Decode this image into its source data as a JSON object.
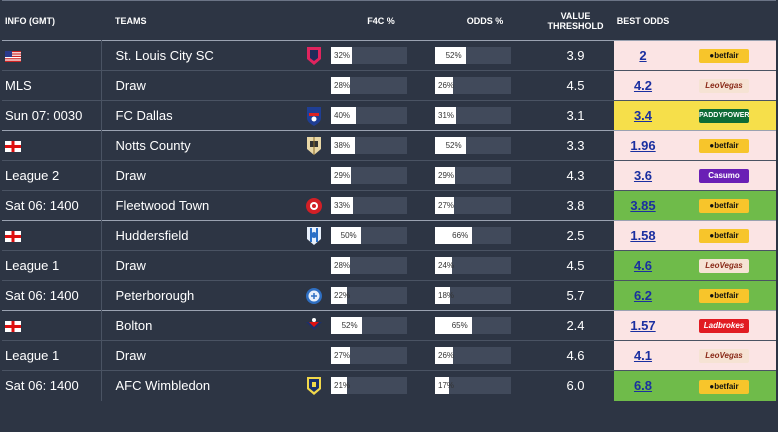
{
  "headers": {
    "info": "INFO (GMT)",
    "teams": "TEAMS",
    "f4c": "F4C %",
    "odds": "ODDS %",
    "value_threshold": "VALUE THRESHOLD",
    "best_odds": "BEST ODDS"
  },
  "colors": {
    "pink": "#fbe4e4",
    "yellow": "#f6df4a",
    "green": "#6fbb4a",
    "bg": "#2d3544"
  },
  "rows": [
    {
      "info": "",
      "flag": "usa-flag-icon",
      "team": "St. Louis City SC",
      "crest": "st-louis-city-crest-icon",
      "f4c_pct": 32,
      "f4c_text": "32%",
      "odds_pct": 52,
      "odds_text": "52%",
      "vt": "3.9",
      "best": "2",
      "bm": "Betfair",
      "bm_kind": "betfair",
      "highlight": "pink"
    },
    {
      "info": "MLS",
      "flag": "",
      "team": "Draw",
      "crest": "",
      "f4c_pct": 28,
      "f4c_text": "28%",
      "odds_pct": 26,
      "odds_text": "26%",
      "vt": "4.5",
      "best": "4.2",
      "bm": "LeoVegas",
      "bm_kind": "leovegas",
      "highlight": "pink"
    },
    {
      "info": "Sun 07: 0030",
      "flag": "",
      "team": "FC Dallas",
      "crest": "fc-dallas-crest-icon",
      "f4c_pct": 40,
      "f4c_text": "40%",
      "odds_pct": 31,
      "odds_text": "31%",
      "vt": "3.1",
      "best": "3.4",
      "bm": "PADDYPOWER",
      "bm_kind": "paddy",
      "highlight": "yellow"
    },
    {
      "info": "",
      "flag": "england-flag-icon",
      "team": "Notts County",
      "crest": "notts-county-crest-icon",
      "f4c_pct": 38,
      "f4c_text": "38%",
      "odds_pct": 52,
      "odds_text": "52%",
      "vt": "3.3",
      "best": "1.96",
      "bm": "Betfair",
      "bm_kind": "betfair",
      "highlight": "pink"
    },
    {
      "info": "League 2",
      "flag": "",
      "team": "Draw",
      "crest": "",
      "f4c_pct": 29,
      "f4c_text": "29%",
      "odds_pct": 29,
      "odds_text": "29%",
      "vt": "4.3",
      "best": "3.6",
      "bm": "Casumo",
      "bm_kind": "casumo",
      "highlight": "pink"
    },
    {
      "info": "Sat 06: 1400",
      "flag": "",
      "team": "Fleetwood Town",
      "crest": "fleetwood-town-crest-icon",
      "f4c_pct": 33,
      "f4c_text": "33%",
      "odds_pct": 27,
      "odds_text": "27%",
      "vt": "3.8",
      "best": "3.85",
      "bm": "Betfair",
      "bm_kind": "betfair",
      "highlight": "green"
    },
    {
      "info": "",
      "flag": "england-flag-icon",
      "team": "Huddersfield",
      "crest": "huddersfield-crest-icon",
      "f4c_pct": 50,
      "f4c_text": "50%",
      "odds_pct": 66,
      "odds_text": "66%",
      "vt": "2.5",
      "best": "1.58",
      "bm": "Betfair",
      "bm_kind": "betfair",
      "highlight": "pink"
    },
    {
      "info": "League 1",
      "flag": "",
      "team": "Draw",
      "crest": "",
      "f4c_pct": 28,
      "f4c_text": "28%",
      "odds_pct": 24,
      "odds_text": "24%",
      "vt": "4.5",
      "best": "4.6",
      "bm": "LeoVegas",
      "bm_kind": "leovegas",
      "highlight": "green"
    },
    {
      "info": "Sat 06: 1400",
      "flag": "",
      "team": "Peterborough",
      "crest": "peterborough-crest-icon",
      "f4c_pct": 22,
      "f4c_text": "22%",
      "odds_pct": 18,
      "odds_text": "18%",
      "vt": "5.7",
      "best": "6.2",
      "bm": "Betfair",
      "bm_kind": "betfair",
      "highlight": "green"
    },
    {
      "info": "",
      "flag": "england-flag-icon",
      "team": "Bolton",
      "crest": "bolton-crest-icon",
      "f4c_pct": 52,
      "f4c_text": "52%",
      "odds_pct": 65,
      "odds_text": "65%",
      "vt": "2.4",
      "best": "1.57",
      "bm": "Ladbrokes",
      "bm_kind": "ladbrokes",
      "highlight": "pink"
    },
    {
      "info": "League 1",
      "flag": "",
      "team": "Draw",
      "crest": "",
      "f4c_pct": 27,
      "f4c_text": "27%",
      "odds_pct": 26,
      "odds_text": "26%",
      "vt": "4.6",
      "best": "4.1",
      "bm": "LeoVegas",
      "bm_kind": "leovegas",
      "highlight": "pink"
    },
    {
      "info": "Sat 06: 1400",
      "flag": "",
      "team": "AFC Wimbledon",
      "crest": "afc-wimbledon-crest-icon",
      "f4c_pct": 21,
      "f4c_text": "21%",
      "odds_pct": 17,
      "odds_text": "17%",
      "vt": "6.0",
      "best": "6.8",
      "bm": "Betfair",
      "bm_kind": "betfair",
      "highlight": "green"
    }
  ]
}
